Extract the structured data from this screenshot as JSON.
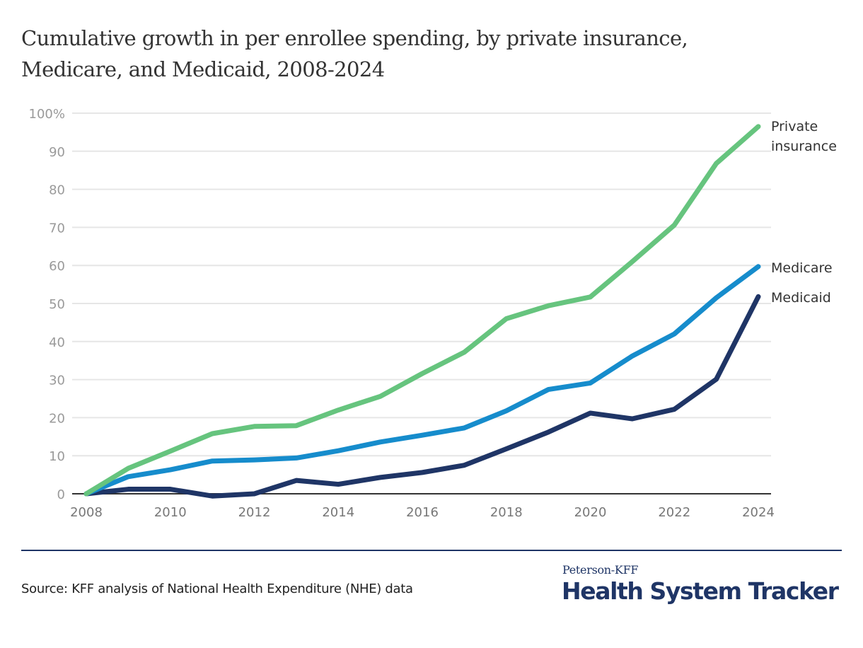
{
  "title_lines": [
    "Cumulative growth in per enrollee spending, by private insurance,",
    "Medicare, and Medicaid, 2008-2024"
  ],
  "source": "Source: KFF analysis of National Health Expenditure (NHE) data",
  "brand": {
    "top": "Peterson-KFF",
    "main": "Health System Tracker",
    "color": "#1f3566"
  },
  "chart_data": {
    "type": "line",
    "title": "Cumulative growth in per enrollee spending, by private insurance, Medicare, and Medicaid, 2008-2024",
    "xlabel": "",
    "ylabel": "",
    "x": [
      2008,
      2009,
      2010,
      2011,
      2012,
      2013,
      2014,
      2015,
      2016,
      2017,
      2018,
      2019,
      2020,
      2021,
      2022,
      2023,
      2024
    ],
    "xticks": [
      "2008",
      "2010",
      "2012",
      "2014",
      "2016",
      "2018",
      "2020",
      "2022",
      "2024"
    ],
    "xlim": [
      2008,
      2024
    ],
    "ylim": [
      0,
      100
    ],
    "yticks": [
      0,
      10,
      20,
      30,
      40,
      50,
      60,
      70,
      80,
      90,
      100
    ],
    "ytick_labels": [
      "0",
      "10",
      "20",
      "30",
      "40",
      "50",
      "60",
      "70",
      "80",
      "90",
      "100%"
    ],
    "grid": true,
    "legend": "direct labels at line ends (right)",
    "series": [
      {
        "name": "Private insurance",
        "label_lines": [
          "Private",
          "insurance"
        ],
        "color": "#66c47e",
        "values": [
          0,
          6.7,
          11.2,
          15.8,
          17.7,
          17.9,
          22.0,
          25.6,
          31.6,
          37.2,
          46.0,
          49.4,
          51.7,
          61.0,
          70.6,
          86.8,
          96.5
        ]
      },
      {
        "name": "Medicare",
        "label_lines": [
          "Medicare"
        ],
        "color": "#168ccc",
        "values": [
          0,
          4.5,
          6.3,
          8.6,
          8.9,
          9.4,
          11.3,
          13.6,
          15.4,
          17.3,
          21.8,
          27.4,
          29.1,
          36.2,
          42.0,
          51.5,
          59.7
        ]
      },
      {
        "name": "Medicaid",
        "label_lines": [
          "Medicaid"
        ],
        "color": "#1f3566",
        "values": [
          0,
          1.2,
          1.2,
          -0.6,
          0,
          3.5,
          2.5,
          4.3,
          5.6,
          7.5,
          11.8,
          16.2,
          21.2,
          19.7,
          22.2,
          30.1,
          51.8
        ]
      }
    ]
  }
}
